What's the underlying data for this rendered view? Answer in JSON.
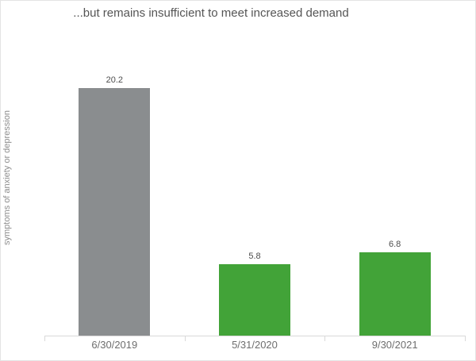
{
  "window": {
    "background_color": "#ffffff",
    "border_color": "#e4e4e4"
  },
  "chart_data": {
    "type": "bar",
    "title": "...but remains insufficient to meet increased demand",
    "xlabel": "",
    "ylabel": "symptoms of anxiety or depression",
    "categories": [
      "6/30/2019",
      "5/31/2020",
      "9/30/2021"
    ],
    "values": [
      20.2,
      5.8,
      6.8
    ],
    "data_labels": [
      "20.2",
      "5.8",
      "6.8"
    ],
    "bar_colors": [
      "#8a8d8f",
      "#42a338",
      "#42a338"
    ],
    "ylim": [
      0,
      21.8
    ],
    "grid": false,
    "legend": "none",
    "y_axis_ticks_visible": false,
    "colors": {
      "title": "#555555",
      "data_label": "#4d4d4d",
      "x_tick_label": "#6e6e6e",
      "y_axis_label": "#8c8c8c",
      "axis_line": "#d9d9d9",
      "highlight_green": "#42a338",
      "baseline_gray": "#8a8d8f"
    }
  }
}
